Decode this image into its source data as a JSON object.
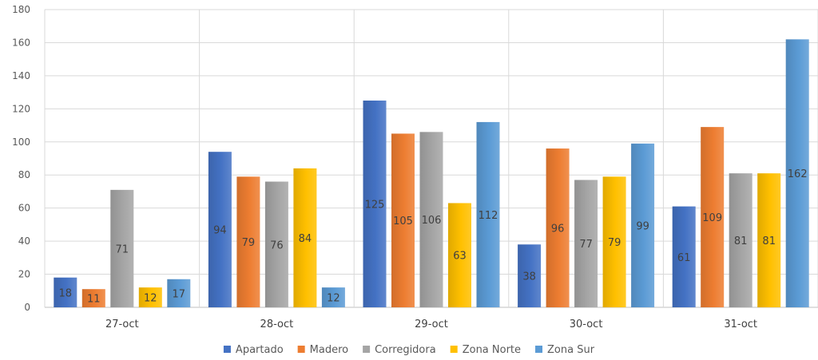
{
  "chart_data": {
    "type": "bar",
    "title": "",
    "xlabel": "",
    "ylabel": "",
    "ylim": [
      0,
      180
    ],
    "yticks": [
      0,
      20,
      40,
      60,
      80,
      100,
      120,
      140,
      160,
      180
    ],
    "grid": true,
    "legend_position": "bottom",
    "categories": [
      "27-oct",
      "28-oct",
      "29-oct",
      "30-oct",
      "31-oct"
    ],
    "series": [
      {
        "name": "Apartado",
        "color": "#4472C4",
        "values": [
          18,
          94,
          125,
          38,
          61
        ]
      },
      {
        "name": "Madero",
        "color": "#ED7D31",
        "values": [
          11,
          79,
          105,
          96,
          109
        ]
      },
      {
        "name": "Corregidora",
        "color": "#A5A5A5",
        "values": [
          71,
          76,
          106,
          77,
          81
        ]
      },
      {
        "name": "Zona Norte",
        "color": "#FFC000",
        "values": [
          12,
          84,
          63,
          79,
          81
        ]
      },
      {
        "name": "Zona Sur",
        "color": "#5B9BD5",
        "values": [
          17,
          12,
          112,
          99,
          162
        ]
      }
    ]
  }
}
